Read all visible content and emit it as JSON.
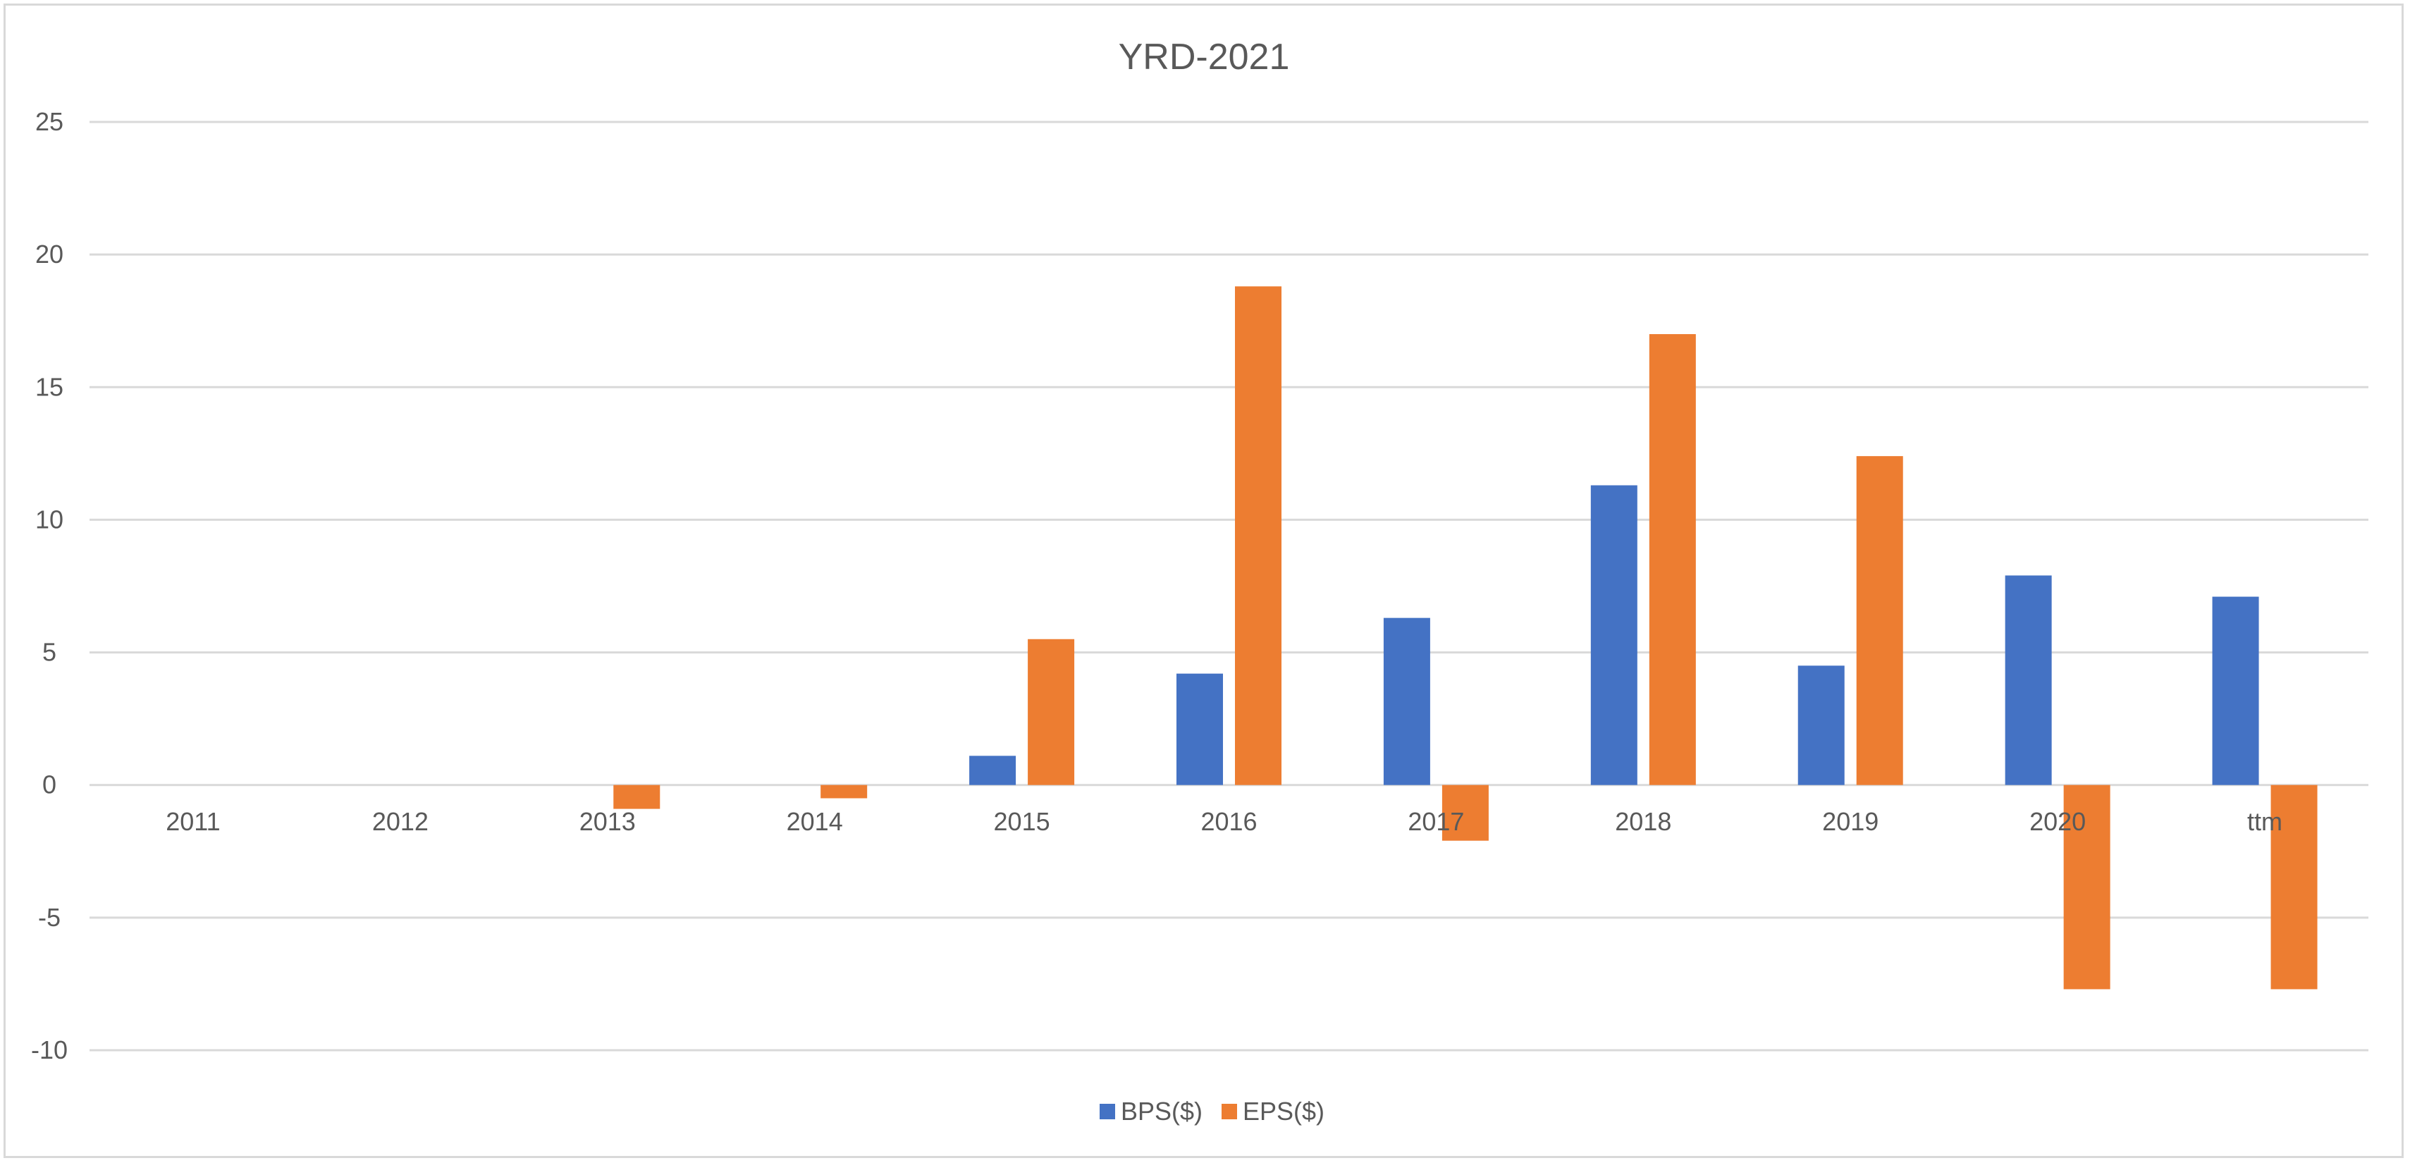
{
  "chart_data": {
    "type": "bar",
    "title": "YRD-2021",
    "xlabel": "",
    "ylabel": "",
    "categories": [
      "2011",
      "2012",
      "2013",
      "2014",
      "2015",
      "2016",
      "2017",
      "2018",
      "2019",
      "2020",
      "ttm"
    ],
    "series": [
      {
        "name": "BPS($)",
        "color": "#4472C4",
        "values": [
          0,
          0,
          0,
          0,
          1.1,
          4.2,
          6.3,
          11.3,
          4.5,
          7.9,
          7.1
        ]
      },
      {
        "name": "EPS($)",
        "color": "#ED7D31",
        "values": [
          0,
          0,
          -0.9,
          -0.5,
          5.5,
          18.8,
          -2.1,
          17.0,
          12.4,
          -7.7,
          -7.7
        ]
      }
    ],
    "ylim": [
      -10,
      25
    ],
    "yticks": [
      25,
      20,
      15,
      10,
      5,
      0,
      -5,
      -10
    ],
    "grid": true,
    "legend_position": "bottom",
    "colors": {
      "grid": "#d9d9d9",
      "text": "#595959"
    }
  }
}
